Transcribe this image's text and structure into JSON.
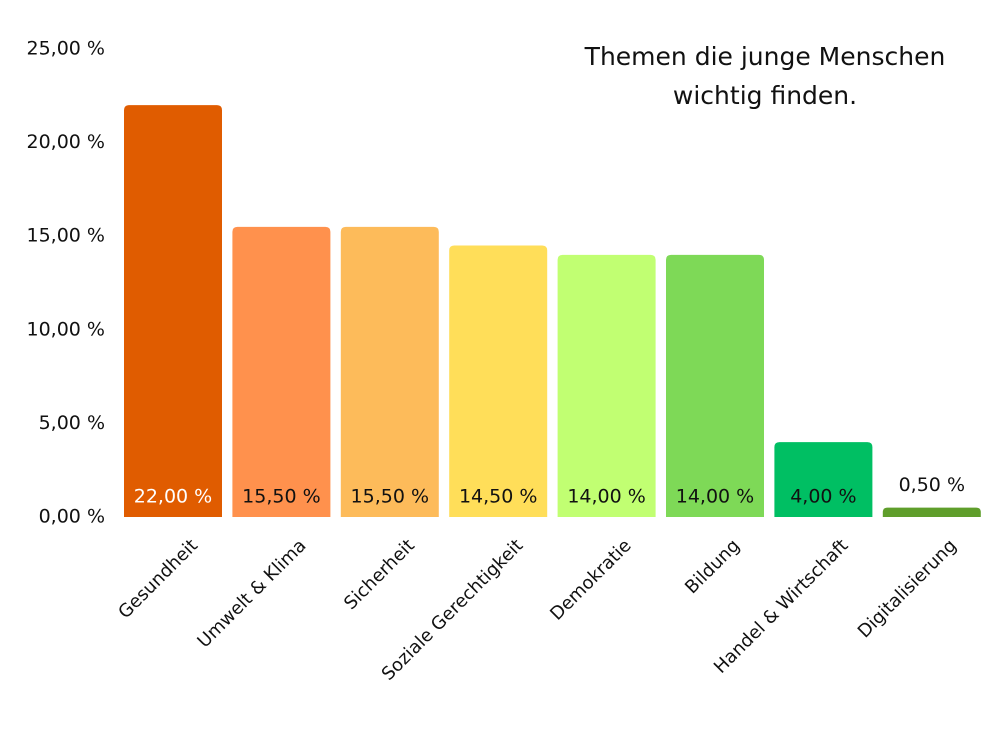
{
  "chart_data": {
    "type": "bar",
    "title": "Themen die junge Menschen wichtig finden.",
    "categories": [
      "Gesundheit",
      "Umwelt & Klima",
      "Sicherheit",
      "Soziale Gerechtigkeit",
      "Demokratie",
      "Bildung",
      "Handel & Wirtschaft",
      "Digitalisierung"
    ],
    "values": [
      22,
      15.5,
      15.5,
      14.5,
      14,
      14,
      4,
      0.5
    ],
    "value_labels": [
      "22,00 %",
      "15,50 %",
      "15,50 %",
      "14,50 %",
      "14,00 %",
      "14,00 %",
      "4,00 %",
      "0,50 %"
    ],
    "colors": [
      "#e05c00",
      "#ff914d",
      "#fdbb5a",
      "#ffde59",
      "#c1ff72",
      "#7ed957",
      "#00bf63",
      "#5f9e2b"
    ],
    "ylim": [
      0,
      25
    ],
    "yticks": [
      {
        "value": 0,
        "label": "0,00 %"
      },
      {
        "value": 5,
        "label": "5,00 %"
      },
      {
        "value": 10,
        "label": "10,00 %"
      },
      {
        "value": 15,
        "label": "15,00 %"
      },
      {
        "value": 20,
        "label": "20,00 %"
      },
      {
        "value": 25,
        "label": "25,00 %"
      }
    ],
    "grid": false
  }
}
